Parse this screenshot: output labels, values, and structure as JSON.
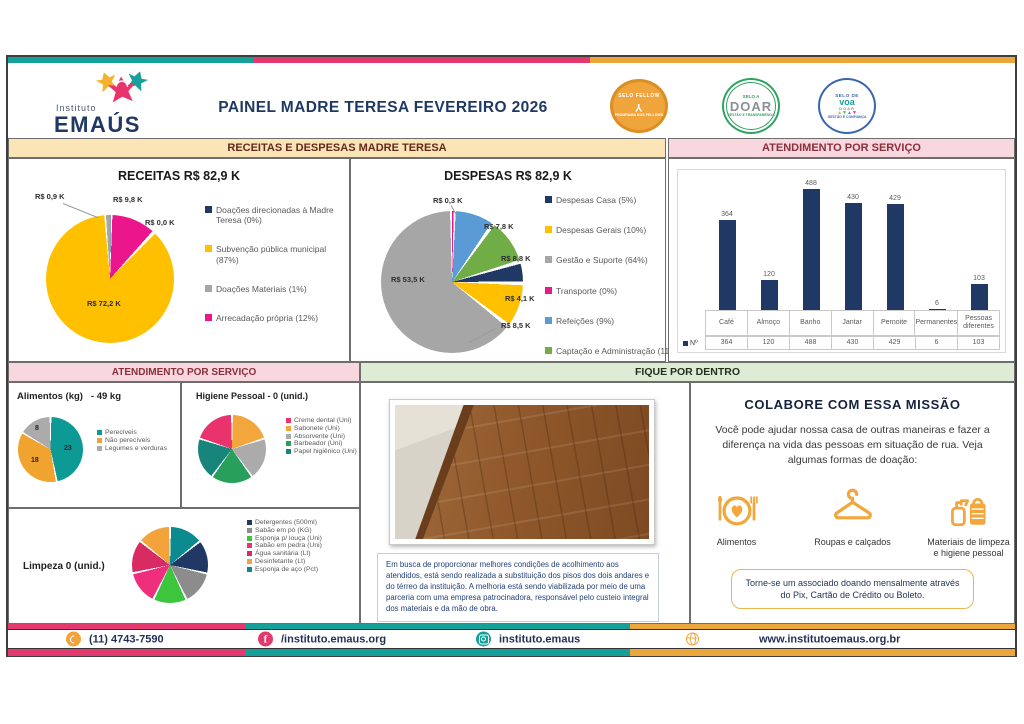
{
  "brand_colors": {
    "teal": "#16A09A",
    "pink": "#E23A6E",
    "amber": "#EBA73B",
    "navy": "#1F3864"
  },
  "logo": {
    "line1": "Instituto",
    "line2": "EMAÚS"
  },
  "header": {
    "title": "PAINEL MADRE TERESA FEVEREIRO 2026"
  },
  "seals": [
    {
      "top": "SELO FELLOW",
      "glyph": "Y",
      "bottom": "PROGRAMA DOS FELLOWS"
    },
    {
      "top": "SELO A",
      "mid": "DOAR",
      "bottom": "GESTÃO E TRANSPARÊNCIA"
    },
    {
      "top": "SELO DE",
      "mid": "voa",
      "mid2": "DOAR",
      "bottom": "GESTÃO E CONFIANÇA"
    }
  ],
  "sections": {
    "receitas_despesas": "RECEITAS E DESPESAS MADRE TERESA",
    "atendimento_servico_right": "ATENDIMENTO POR SERVIÇO",
    "atendimento_servico_left": "ATENDIMENTO POR SERVIÇO",
    "fique_por_dentro": "FIQUE POR DENTRO"
  },
  "chart_data": [
    {
      "type": "pie",
      "id": "receitas",
      "title": "RECEITAS R$ 82,9 K",
      "total": "R$ 82,9 K",
      "slices": [
        {
          "name": "Doações direcionadas à Madre Teresa",
          "pct": 0.15,
          "value_label": "R$ 0,0 K",
          "color": "#1F3864"
        },
        {
          "name": "Arrecadação própria",
          "pct": 11.85,
          "value_label": "R$ 9,8 K",
          "color": "#EC168C"
        },
        {
          "name": "Subvenção pública municipal",
          "pct": 87.0,
          "value_label": "R$ 72,2 K",
          "color": "#FFC000"
        },
        {
          "name": "Doações Materiais",
          "pct": 1.0,
          "value_label": "R$ 0,9 K",
          "color": "#A6A6A6"
        }
      ],
      "legend": [
        {
          "label": "Doações direcionadas à Madre Teresa (0%)",
          "color": "#1F3864"
        },
        {
          "label": "Subvenção pública municipal (87%)",
          "color": "#FFC000"
        },
        {
          "label": "Doações Materiais (1%)",
          "color": "#A6A6A6"
        },
        {
          "label": "Arrecadação própria (12%)",
          "color": "#EC168C"
        }
      ]
    },
    {
      "type": "pie",
      "id": "despesas",
      "title": "DESPESAS R$ 82,9 K",
      "total": "R$ 82,9 K",
      "slices": [
        {
          "name": "Transporte",
          "pct": 0.4,
          "value_label": "R$ 0,3 K",
          "color": "#EC168C"
        },
        {
          "name": "Refeições",
          "pct": 9.4,
          "value_label": "R$ 7,8 K",
          "color": "#5B9BD5"
        },
        {
          "name": "Captação e Administração",
          "pct": 10.6,
          "value_label": "R$ 8,8 K",
          "color": "#70AD47"
        },
        {
          "name": "Despesas Casa",
          "pct": 4.9,
          "value_label": "R$ 4,1 K",
          "color": "#1F3864"
        },
        {
          "name": "Despesas Gerais",
          "pct": 10.2,
          "value_label": "R$ 8,5 K",
          "color": "#FFC000"
        },
        {
          "name": "Gestão e Suporte",
          "pct": 64.5,
          "value_label": "R$ 53,5 K",
          "color": "#A6A6A6"
        }
      ],
      "legend": [
        {
          "label": "Despesas Casa (5%)",
          "color": "#1F3864"
        },
        {
          "label": "Despesas Gerais (10%)",
          "color": "#FFC000"
        },
        {
          "label": "Gestão e Suporte (64%)",
          "color": "#A6A6A6"
        },
        {
          "label": "Transporte (0%)",
          "color": "#EC168C"
        },
        {
          "label": "Refeições (9%)",
          "color": "#5B9BD5"
        },
        {
          "label": "Captação e Administração (11%)",
          "color": "#70AD47"
        }
      ]
    },
    {
      "type": "bar",
      "id": "atendimento",
      "title": "ATENDIMENTO POR SERVIÇO",
      "series_name": "Nº",
      "categories": [
        "Café",
        "Almoço",
        "Banho",
        "Jantar",
        "Pernoite",
        "Permanentes",
        "Pessoas diferentes"
      ],
      "values": [
        364,
        120,
        488,
        430,
        429,
        6,
        103
      ],
      "bar_color": "#1F3864",
      "ymax": 488
    },
    {
      "type": "pie",
      "id": "alimentos",
      "title": "Alimentos (kg)",
      "subtitle": "- 49 kg",
      "total_kg": 49,
      "slices": [
        {
          "name": "Perecíveis",
          "value": 23,
          "pct": 46.9,
          "color": "#0E9A94"
        },
        {
          "name": "Não perecíveis",
          "value": 18,
          "pct": 36.7,
          "color": "#F0A32F"
        },
        {
          "name": "Legumes e verduras",
          "value": 8,
          "pct": 16.4,
          "color": "#ABABAB"
        }
      ],
      "legend": [
        {
          "label": "Perecíveis",
          "color": "#0E9A94"
        },
        {
          "label": "Não perecíveis",
          "color": "#F0A32F"
        },
        {
          "label": "Legumes e verduras",
          "color": "#ABABAB"
        }
      ]
    },
    {
      "type": "pie",
      "id": "higiene",
      "title": "Higiene Pessoal - 0 (unid.)",
      "slices": [
        {
          "name": "Sabonete",
          "pct": 20,
          "color": "#F2A63B"
        },
        {
          "name": "Absorvente",
          "pct": 20,
          "color": "#ABABAB"
        },
        {
          "name": "Barbeador",
          "pct": 20,
          "color": "#28A05C"
        },
        {
          "name": "Papel higiênico",
          "pct": 20,
          "color": "#17857C"
        },
        {
          "name": "Creme dental",
          "pct": 20,
          "color": "#E8336D"
        }
      ],
      "legend": [
        {
          "label": "Creme dental (Uni)",
          "color": "#E8336D"
        },
        {
          "label": "Sabonete (Uni)",
          "color": "#F2A63B"
        },
        {
          "label": "Absorvente (Uni)",
          "color": "#ABABAB"
        },
        {
          "label": "Barbeador (Uni)",
          "color": "#28A05C"
        },
        {
          "label": "Papel higiênico (Uni)",
          "color": "#17857C"
        }
      ]
    },
    {
      "type": "pie",
      "id": "limpeza",
      "title": "Limpeza 0 (unid.)",
      "slices": [
        {
          "name": "Esponja de aço",
          "pct": 14.3,
          "color": "#0B8A8F"
        },
        {
          "name": "Detergentes",
          "pct": 14.3,
          "color": "#1F3864"
        },
        {
          "name": "Sabão em pó",
          "pct": 14.3,
          "color": "#8C8C8C"
        },
        {
          "name": "Esponja p/ louça",
          "pct": 14.3,
          "color": "#3EC53E"
        },
        {
          "name": "Sabão em pedra",
          "pct": 14.3,
          "color": "#F02E7E"
        },
        {
          "name": "Água sanitária",
          "pct": 14.3,
          "color": "#D92B63"
        },
        {
          "name": "Desinfetante",
          "pct": 14.2,
          "color": "#F2A33C"
        }
      ],
      "legend": [
        {
          "label": "Detergentes (500ml)",
          "color": "#1F3864"
        },
        {
          "label": "Sabão em pó (KG)",
          "color": "#8C8C8C"
        },
        {
          "label": "Esponja p/ louça (Uni)",
          "color": "#3EC53E"
        },
        {
          "label": "Sabão em pedra (Uni)",
          "color": "#F02E7E"
        },
        {
          "label": "Água sanitária (Lt)",
          "color": "#D92B63"
        },
        {
          "label": "Desinfetante (Lt)",
          "color": "#F2A33C"
        },
        {
          "label": "Esponja de aço (Pct)",
          "color": "#0B8A8F"
        }
      ]
    }
  ],
  "fique": {
    "text": "Em busca de proporcionar melhores condições de acolhimento aos atendidos, está sendo realizada a substituição dos pisos dos dois andares e do térreo da instituição. A melhoria está sendo viabilizada por meio de uma parceria com uma empresa patrocinadora, responsável pelo custeio integral dos materiais e da mão de obra."
  },
  "colabore": {
    "title": "COLABORE COM ESSA MISSÃO",
    "body": "Você pode ajudar nossa casa de outras maneiras e fazer a diferença na vida das pessoas em situação de rua. Veja algumas formas de doação:",
    "donations": [
      {
        "icon": "meal-plate-icon",
        "label": "Alimentos"
      },
      {
        "icon": "hanger-icon",
        "label": "Roupas e calçados"
      },
      {
        "icon": "cleaning-supplies-icon",
        "label": "Materiais de limpeza e higiene pessoal"
      }
    ],
    "associate_note": "Torne-se um associado doando mensalmente através do Pix, Cartão de Crédito ou Boleto."
  },
  "footer": {
    "items": [
      {
        "icon": "phone-icon",
        "text": "(11) 4743-7590"
      },
      {
        "icon": "facebook-icon",
        "text": "/instituto.emaus.org"
      },
      {
        "icon": "instagram-icon",
        "text": "instituto.emaus"
      },
      {
        "icon": "globe-icon",
        "text": "www.institutoemaus.org.br"
      }
    ]
  }
}
